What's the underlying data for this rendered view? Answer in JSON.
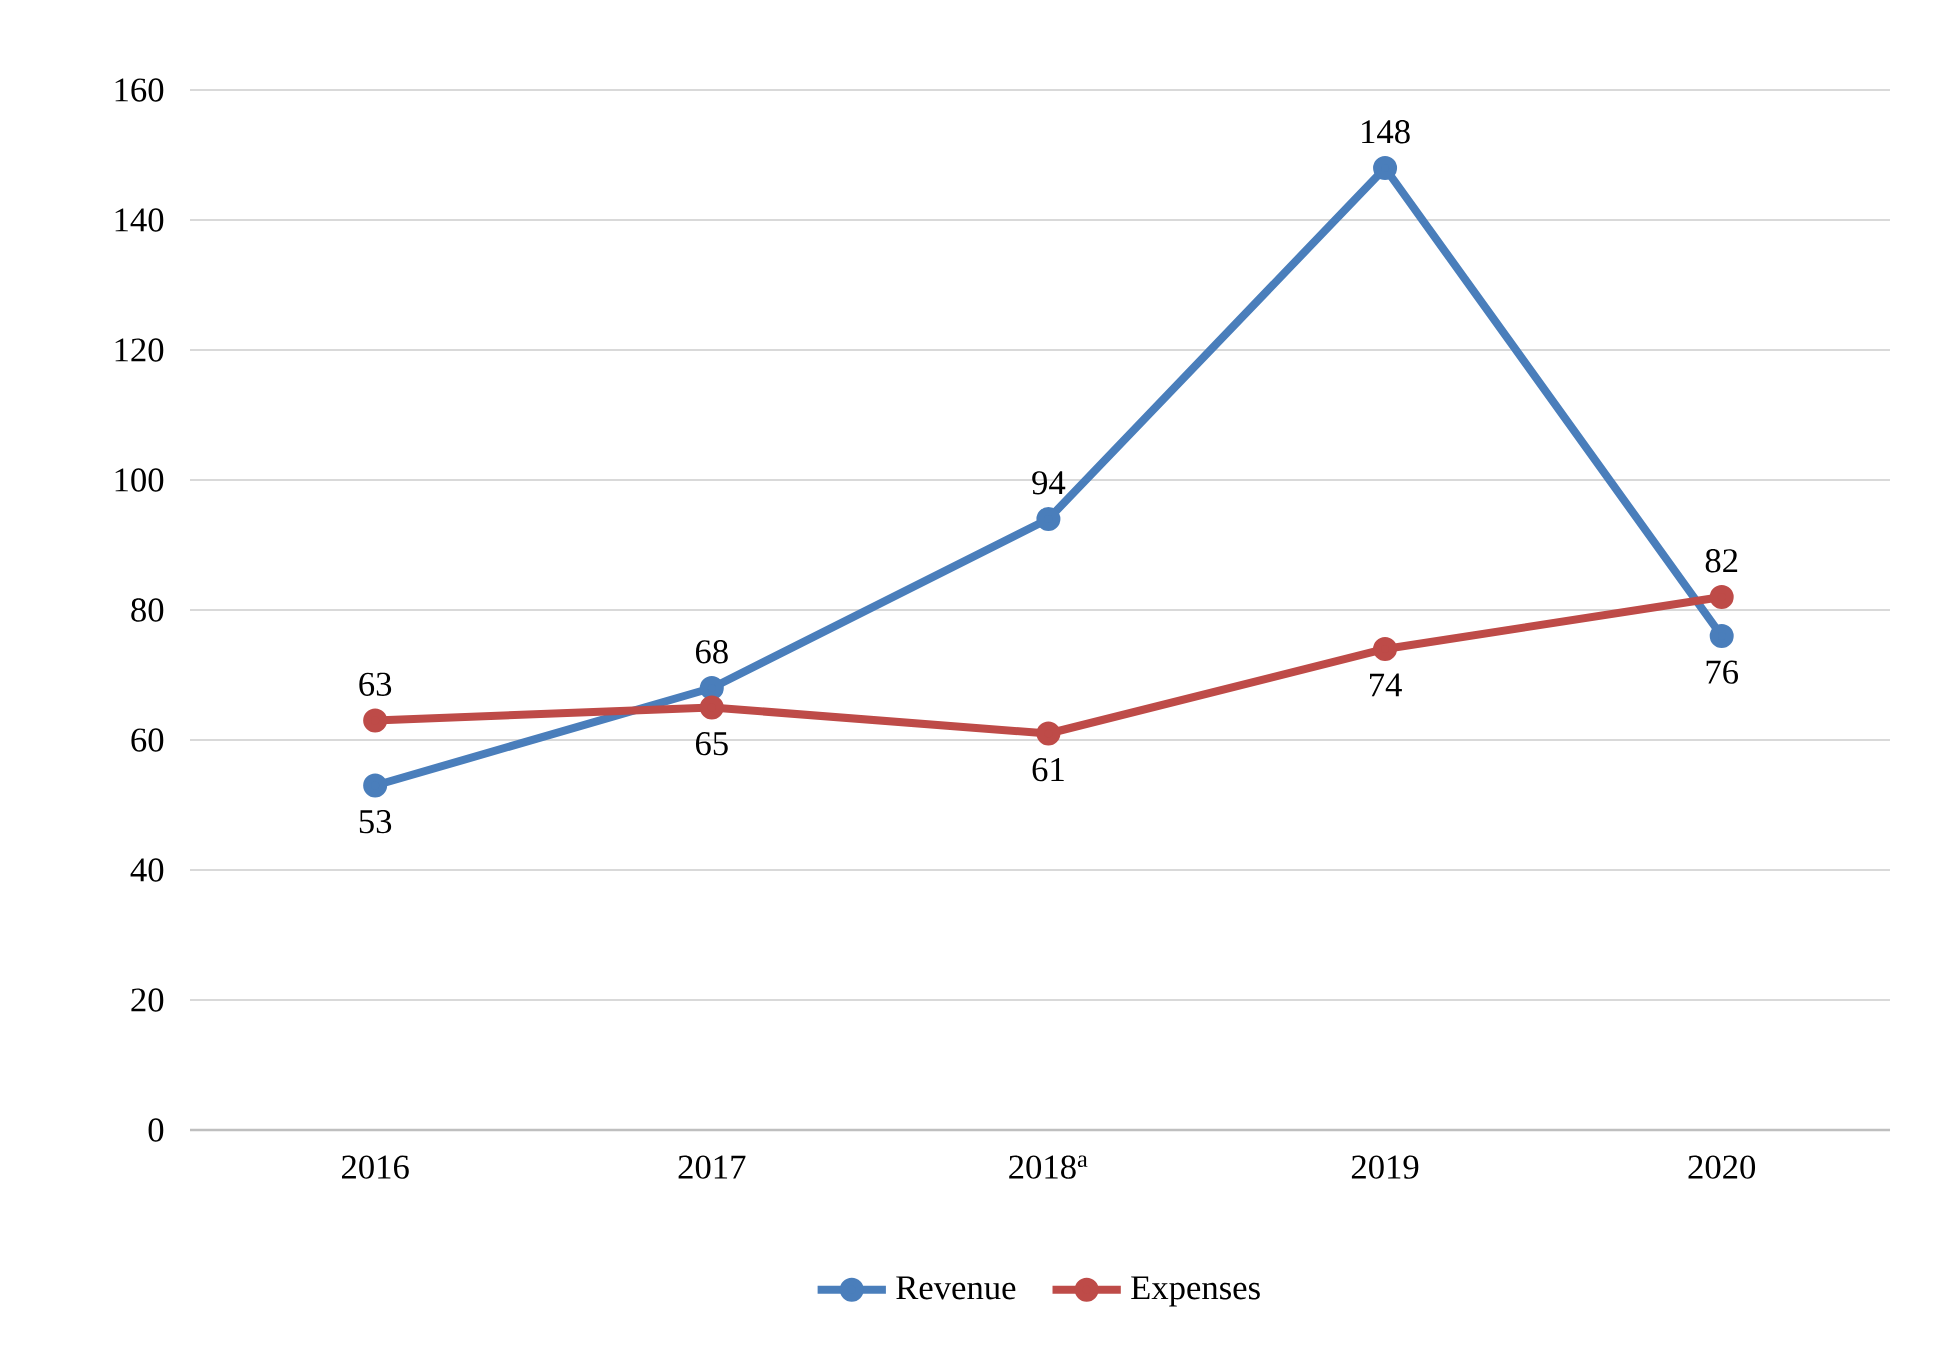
{
  "chart_data": {
    "type": "line",
    "categories": [
      "2016",
      "2017",
      "2018$^{a}$",
      "2019",
      "2020"
    ],
    "series": [
      {
        "name": "Revenue",
        "color": "#4a7ebb",
        "values": [
          53,
          68,
          94,
          148,
          76
        ]
      },
      {
        "name": "Expenses",
        "color": "#be4b48",
        "values": [
          63,
          65,
          61,
          74,
          82
        ]
      }
    ],
    "ylim": [
      0,
      160
    ],
    "yticks": [
      0,
      20,
      40,
      60,
      80,
      100,
      120,
      140,
      160
    ],
    "grid": "y",
    "legend": "bottom",
    "marker": "circle",
    "line_style": "solid",
    "data_labels": true
  }
}
